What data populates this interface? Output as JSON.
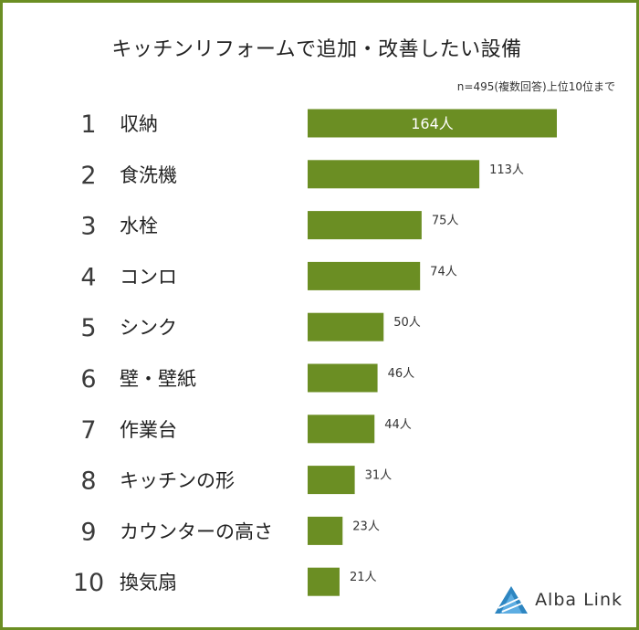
{
  "title": "キッチンリフォームで追加・改善したい設備",
  "note": "n=495(複数回答)上位10位まで",
  "logo": {
    "text": "Alba Link",
    "icon": "alba-link-logo-icon"
  },
  "colors": {
    "bar": "#6b8e23",
    "frame": "#6b8e23"
  },
  "chart_data": {
    "type": "bar",
    "orientation": "horizontal",
    "title": "キッチンリフォームで追加・改善したい設備",
    "ranks": [
      "1",
      "2",
      "3",
      "4",
      "5",
      "6",
      "7",
      "8",
      "9",
      "10"
    ],
    "categories": [
      "収納",
      "食洗機",
      "水栓",
      "コンロ",
      "シンク",
      "壁・壁紙",
      "作業台",
      "キッチンの形",
      "カウンターの高さ",
      "換気扇"
    ],
    "values": [
      164,
      113,
      75,
      74,
      50,
      46,
      44,
      31,
      23,
      21
    ],
    "value_labels": [
      "164人",
      "113人",
      "75人",
      "74人",
      "50人",
      "46人",
      "44人",
      "31人",
      "23人",
      "21人"
    ],
    "unit": "人",
    "legend": "none",
    "grid": false
  }
}
